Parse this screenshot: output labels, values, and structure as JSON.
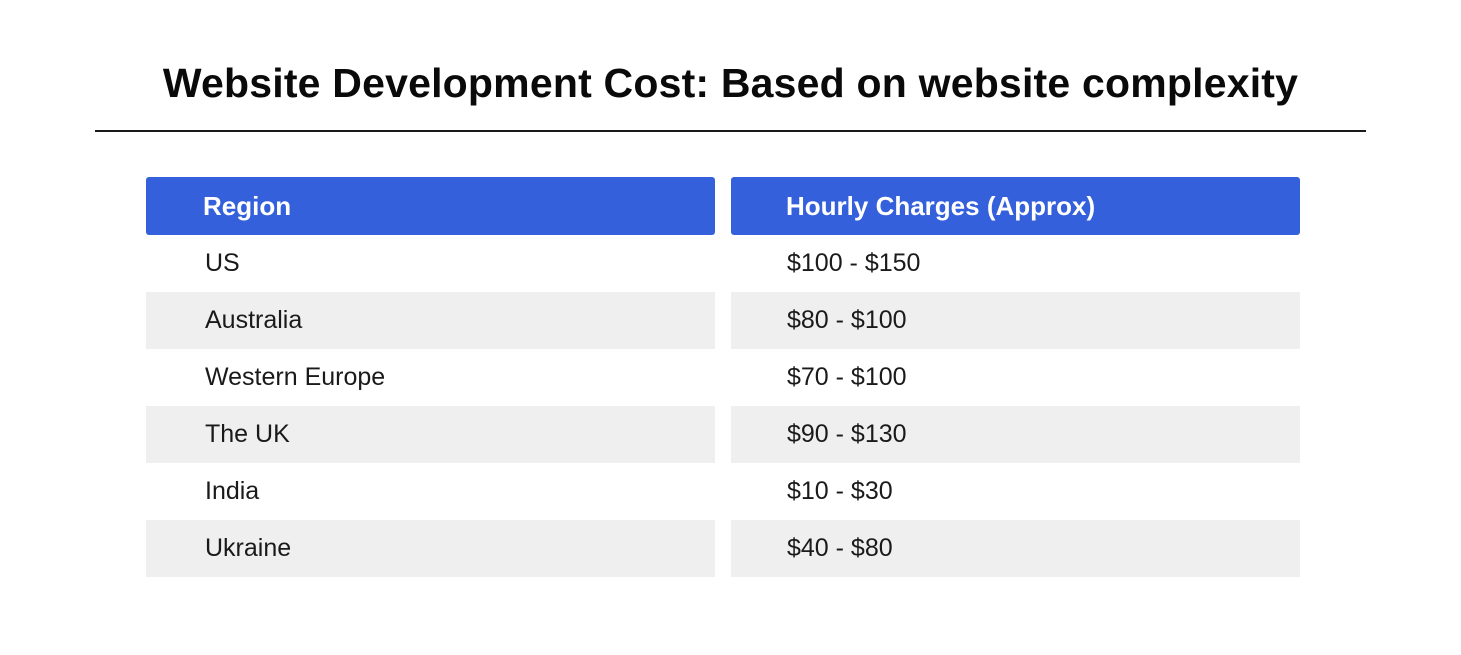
{
  "title": "Website Development Cost: Based on website complexity",
  "table": {
    "headers": [
      "Region",
      "Hourly Charges (Approx)"
    ],
    "rows": [
      [
        "US",
        "$100 - $150"
      ],
      [
        "Australia",
        "$80 - $100"
      ],
      [
        "Western Europe",
        "$70 - $100"
      ],
      [
        "The UK",
        "$90 - $130"
      ],
      [
        "India",
        "$10 - $30"
      ],
      [
        "Ukraine",
        "$40 - $80"
      ]
    ]
  },
  "colors": {
    "header_background": "#3560dc",
    "header_text": "#ffffff",
    "shaded_row": "#efefef",
    "text": "#1a1a1a"
  }
}
